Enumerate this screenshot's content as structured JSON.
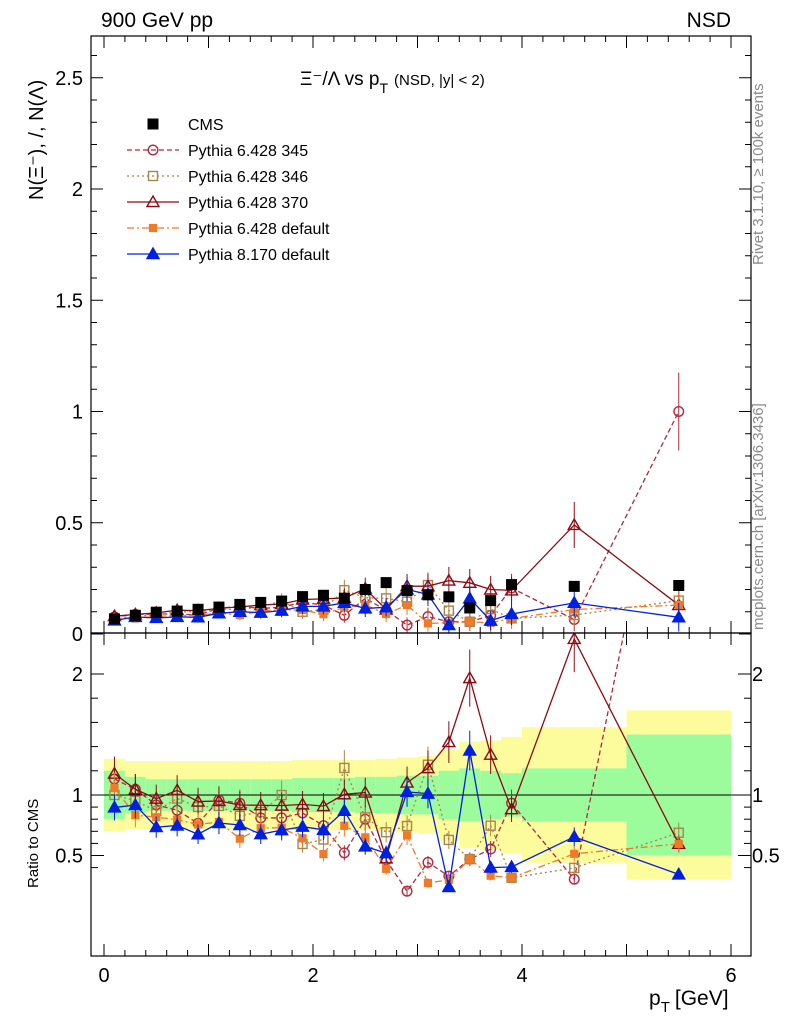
{
  "header": {
    "left": "900 GeV pp",
    "right": "NSD"
  },
  "side_labels": {
    "rivet": "Rivet 3.1.10, ≥ 100k events",
    "source": "mcplots.cern.ch [arXiv:1306.3436]"
  },
  "plot_title": {
    "main": "Ξ⁻/Λ  vs p",
    "sub": "T",
    "cut": "(NSD, |y| < 2)"
  },
  "axes": {
    "top_ylabel": "N(Ξ⁻), /, N(Λ)",
    "ratio_ylabel": "Ratio to CMS",
    "xlabel_main": "p",
    "xlabel_sub": "T",
    "xlabel_unit": "[GeV]"
  },
  "colors": {
    "cms": "#000000",
    "p345": "#b2283c",
    "p346": "#a8844a",
    "p370": "#8b0a14",
    "pdef": "#f07a28",
    "p8": "#0020e0",
    "band_green": "#9cfc9c",
    "band_yellow": "#fcfc9c"
  },
  "chart_data": {
    "type": "scatter",
    "title": "Ξ⁻/Λ vs pT (NSD, |y| < 2)",
    "xlabel": "pT [GeV]",
    "ylabel": "N(Ξ⁻), /, N(Λ)",
    "xlim": [
      -0.1,
      6.1
    ],
    "ylim": [
      0,
      2.7
    ],
    "ratio_ylim": [
      0.35,
      2.25
    ],
    "x_ticks": [
      "0",
      "2",
      "4",
      "6"
    ],
    "y_ticks": [
      "0",
      "0.5",
      "1",
      "1.5",
      "2",
      "2.5"
    ],
    "ratio_ticks": [
      "0.5",
      "1",
      "2"
    ],
    "legend_position": "top-left",
    "x": [
      0.1,
      0.3,
      0.5,
      0.7,
      0.9,
      1.1,
      1.3,
      1.5,
      1.7,
      1.9,
      2.1,
      2.3,
      2.5,
      2.7,
      2.9,
      3.1,
      3.3,
      3.5,
      3.7,
      3.9,
      4.5,
      5.5
    ],
    "cms": {
      "name": "CMS",
      "values": [
        0.068,
        0.084,
        0.098,
        0.103,
        0.111,
        0.121,
        0.133,
        0.142,
        0.148,
        0.168,
        0.174,
        0.161,
        0.2,
        0.231,
        0.195,
        0.176,
        0.167,
        0.117,
        0.15,
        0.222,
        0.214,
        0.218
      ],
      "ratio_band_inner": [
        0.8,
        0.85,
        0.87,
        0.87,
        0.87,
        0.87,
        0.87,
        0.87,
        0.87,
        0.86,
        0.86,
        0.86,
        0.85,
        0.85,
        0.84,
        0.84,
        0.8,
        0.78,
        0.8,
        0.82,
        0.78,
        0.5
      ],
      "ratio_band_outer": [
        0.7,
        0.72,
        0.72,
        0.72,
        0.72,
        0.72,
        0.72,
        0.72,
        0.72,
        0.71,
        0.71,
        0.71,
        0.71,
        0.7,
        0.69,
        0.68,
        0.62,
        0.56,
        0.55,
        0.52,
        0.44,
        0.3
      ]
    },
    "series": [
      {
        "name": "Pythia 6.428 345",
        "key": "p345",
        "values": [
          0.077,
          0.088,
          0.09,
          0.09,
          0.085,
          0.116,
          0.124,
          0.115,
          0.12,
          0.143,
          0.13,
          0.084,
          0.16,
          0.107,
          0.04,
          0.078,
          0.055,
          0.055,
          0.083,
          0.207,
          0.065,
          1.0
        ]
      },
      {
        "name": "Pythia 6.428 346",
        "key": "p346",
        "values": [
          0.068,
          0.08,
          0.085,
          0.1,
          0.1,
          0.11,
          0.11,
          0.122,
          0.148,
          0.1,
          0.11,
          0.197,
          0.163,
          0.16,
          0.145,
          0.22,
          0.105,
          0.055,
          0.112,
          0.07,
          0.085,
          0.15
        ]
      },
      {
        "name": "Pythia 6.428 370",
        "key": "p370",
        "values": [
          0.08,
          0.088,
          0.095,
          0.107,
          0.105,
          0.115,
          0.122,
          0.13,
          0.135,
          0.155,
          0.158,
          0.162,
          0.204,
          0.11,
          0.215,
          0.215,
          0.24,
          0.23,
          0.2,
          0.196,
          0.49,
          0.13
        ]
      },
      {
        "name": "Pythia 6.428 default",
        "key": "pdef",
        "values": [
          0.072,
          0.07,
          0.08,
          0.082,
          0.084,
          0.094,
          0.085,
          0.103,
          0.108,
          0.108,
          0.089,
          0.12,
          0.13,
          0.09,
          0.13,
          0.048,
          0.05,
          0.055,
          0.05,
          0.07,
          0.11,
          0.13
        ]
      },
      {
        "name": "Pythia 8.170 default",
        "key": "p8",
        "values": [
          0.061,
          0.077,
          0.072,
          0.077,
          0.075,
          0.093,
          0.1,
          0.096,
          0.105,
          0.124,
          0.124,
          0.14,
          0.115,
          0.12,
          0.2,
          0.178,
          0.04,
          0.16,
          0.06,
          0.09,
          0.14,
          0.075
        ]
      }
    ]
  }
}
